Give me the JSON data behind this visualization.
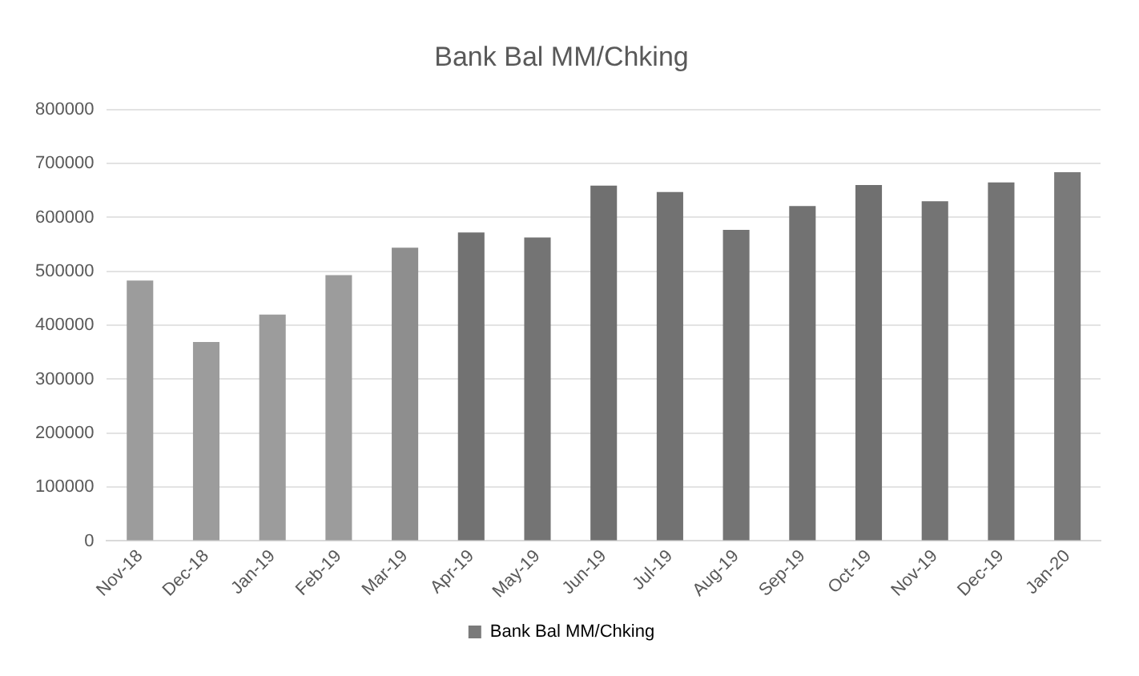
{
  "chart_data": {
    "type": "bar",
    "title": "Bank Bal MM/Chking",
    "categories": [
      "Nov-18",
      "Dec-18",
      "Jan-19",
      "Feb-19",
      "Mar-19",
      "Apr-19",
      "May-19",
      "Jun-19",
      "Jul-19",
      "Aug-19",
      "Sep-19",
      "Oct-19",
      "Nov-19",
      "Dec-19",
      "Jan-20"
    ],
    "series": [
      {
        "name": "Bank Bal MM/Chking",
        "color": "#7a7a7a",
        "values": [
          483000,
          369000,
          420000,
          493000,
          544000,
          572000,
          563000,
          659000,
          647000,
          577000,
          621000,
          660000,
          630000,
          665000,
          684000
        ],
        "colors": [
          "#9c9c9c",
          "#9c9c9c",
          "#9c9c9c",
          "#9c9c9c",
          "#8e8e8e",
          "#727272",
          "#747474",
          "#707070",
          "#727272",
          "#747474",
          "#727272",
          "#707070",
          "#747474",
          "#747474",
          "#7a7a7a"
        ]
      }
    ],
    "ylim": [
      0,
      800000
    ],
    "yticks": [
      0,
      100000,
      200000,
      300000,
      400000,
      500000,
      600000,
      700000,
      800000
    ],
    "grid": "y",
    "legend": "bottom"
  }
}
